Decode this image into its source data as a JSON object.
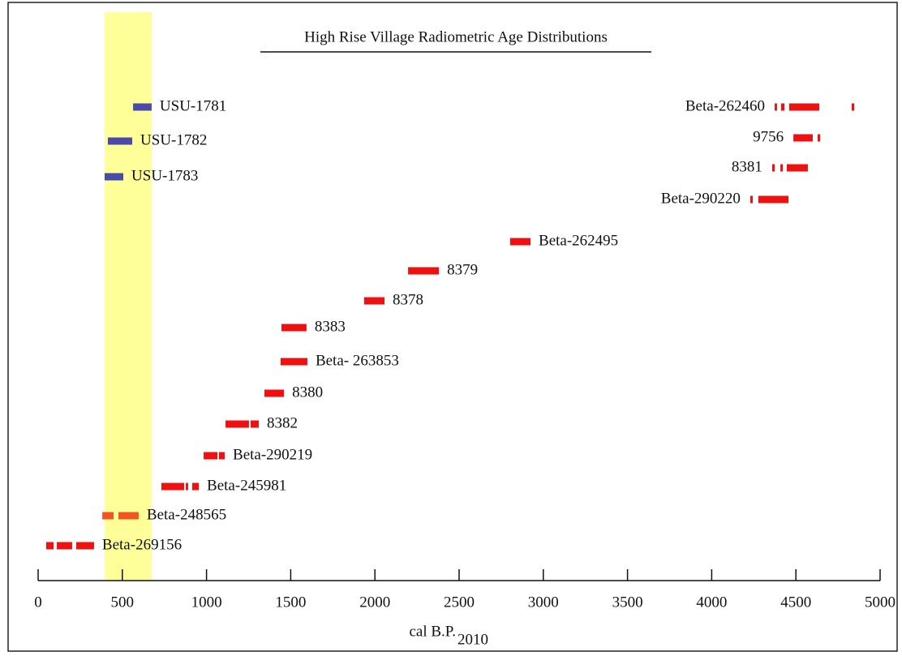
{
  "chart_data": {
    "type": "range",
    "title": "High Rise Village Radiometric Age Distributions",
    "xlabel": "cal B.P.",
    "xlabel_subscript": "2010",
    "xlim": [
      0,
      5000
    ],
    "xticks": [
      0,
      500,
      1000,
      1500,
      2000,
      2500,
      3000,
      3500,
      4000,
      4500,
      5000
    ],
    "highlight": {
      "range": [
        395,
        674
      ],
      "color": "#ffff99"
    },
    "samples": [
      {
        "name": "USU-1781",
        "color": "#4a4aaa",
        "segments": [
          [
            564,
            674
          ]
        ]
      },
      {
        "name": "USU-1782",
        "color": "#4a4aaa",
        "segments": [
          [
            414,
            559
          ]
        ]
      },
      {
        "name": "USU-1783",
        "color": "#4a4aaa",
        "segments": [
          [
            395,
            506
          ]
        ]
      },
      {
        "name": "Beta-262460",
        "color": "#ee1111",
        "segments": [
          [
            4374,
            4388
          ],
          [
            4412,
            4432
          ],
          [
            4460,
            4639
          ],
          [
            4831,
            4846
          ]
        ]
      },
      {
        "name": "9756",
        "color": "#ee1111",
        "segments": [
          [
            4485,
            4600
          ],
          [
            4629,
            4644
          ]
        ]
      },
      {
        "name": "8381",
        "color": "#ee1111",
        "segments": [
          [
            4359,
            4374
          ],
          [
            4408,
            4422
          ],
          [
            4446,
            4571
          ]
        ]
      },
      {
        "name": "Beta-290220",
        "color": "#ee1111",
        "segments": [
          [
            4229,
            4244
          ],
          [
            4277,
            4456
          ]
        ]
      },
      {
        "name": "Beta-262495",
        "color": "#ee1111",
        "segments": [
          [
            2803,
            2924
          ]
        ]
      },
      {
        "name": "8379",
        "color": "#ee1111",
        "segments": [
          [
            2197,
            2380
          ]
        ]
      },
      {
        "name": "8378",
        "color": "#ee1111",
        "segments": [
          [
            1936,
            2057
          ]
        ]
      },
      {
        "name": "8383",
        "color": "#ee1111",
        "segments": [
          [
            1445,
            1594
          ]
        ]
      },
      {
        "name": "Beta- 263853",
        "color": "#ee1111",
        "segments": [
          [
            1440,
            1599
          ]
        ]
      },
      {
        "name": "8380",
        "color": "#ee1111",
        "segments": [
          [
            1344,
            1460
          ]
        ]
      },
      {
        "name": "8382",
        "color": "#ee1111",
        "segments": [
          [
            1113,
            1252
          ],
          [
            1262,
            1310
          ]
        ]
      },
      {
        "name": "Beta-290219",
        "color": "#ee1111",
        "segments": [
          [
            983,
            1065
          ],
          [
            1074,
            1108
          ]
        ]
      },
      {
        "name": "Beta-245981",
        "color": "#ee1111",
        "segments": [
          [
            732,
            867
          ],
          [
            877,
            891
          ],
          [
            915,
            954
          ]
        ]
      },
      {
        "name": "Beta-248565",
        "color": "#f05522",
        "segments": [
          [
            381,
            448
          ],
          [
            477,
            597
          ]
        ]
      },
      {
        "name": "Beta-269156",
        "color": "#ee1111",
        "segments": [
          [
            48,
            92
          ],
          [
            111,
            202
          ],
          [
            226,
            332
          ]
        ]
      }
    ]
  }
}
